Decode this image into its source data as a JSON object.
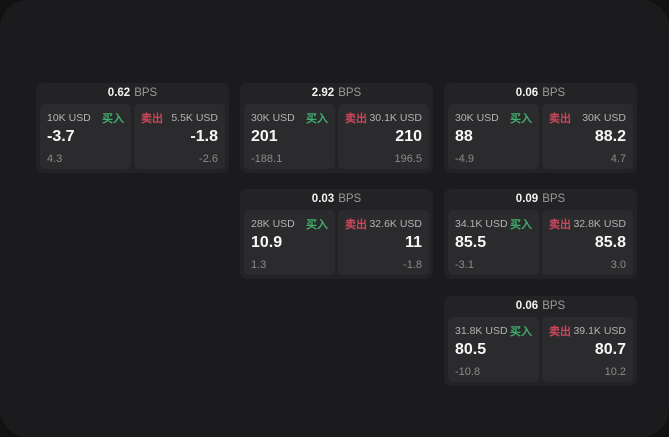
{
  "colors": {
    "buy_green": "#3fae6c",
    "sell_red": "#c9485c",
    "window_bg": "#1b1b1d",
    "card_bg": "#232325",
    "panel_bg": "#2b2b2d"
  },
  "labels": {
    "bps_unit": "BPS",
    "buy": "买入",
    "sell": "卖出"
  },
  "cards": [
    {
      "bps": "0.62",
      "buy": {
        "amount": "10K USD",
        "value": "-3.7",
        "delta": "4.3"
      },
      "sell": {
        "amount": "5.5K USD",
        "value": "-1.8",
        "delta": "-2.6"
      }
    },
    {
      "bps": "2.92",
      "buy": {
        "amount": "30K USD",
        "value": "201",
        "delta": "-188.1"
      },
      "sell": {
        "amount": "30.1K USD",
        "value": "210",
        "delta": "196.5"
      }
    },
    {
      "bps": "0.06",
      "buy": {
        "amount": "30K USD",
        "value": "88",
        "delta": "-4.9"
      },
      "sell": {
        "amount": "30K USD",
        "value": "88.2",
        "delta": "4.7"
      }
    },
    {
      "bps": "0.03",
      "buy": {
        "amount": "28K USD",
        "value": "10.9",
        "delta": "1.3"
      },
      "sell": {
        "amount": "32.6K USD",
        "value": "11",
        "delta": "-1.8"
      }
    },
    {
      "bps": "0.09",
      "buy": {
        "amount": "34.1K USD",
        "value": "85.5",
        "delta": "-3.1"
      },
      "sell": {
        "amount": "32.8K USD",
        "value": "85.8",
        "delta": "3.0"
      }
    },
    {
      "bps": "0.06",
      "buy": {
        "amount": "31.8K USD",
        "value": "80.5",
        "delta": "-10.8"
      },
      "sell": {
        "amount": "39.1K USD",
        "value": "80.7",
        "delta": "10.2"
      }
    }
  ]
}
